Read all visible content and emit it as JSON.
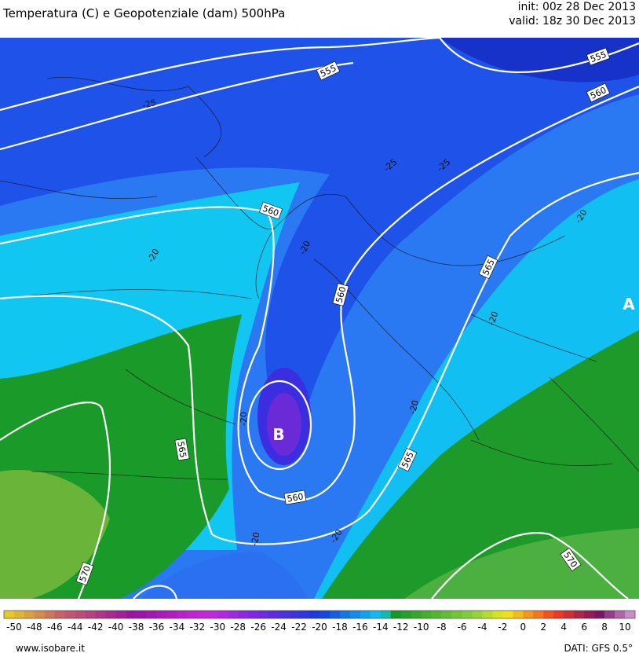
{
  "header": {
    "title": "Temperatura (C) e Geopotenziale (dam) 500hPa",
    "init": "init: 00z 28 Dec 2013",
    "valid": "valid: 18z 30 Dec 2013"
  },
  "map": {
    "labels": [
      "555",
      "555",
      "560",
      "-25",
      "-25",
      "-25",
      "560",
      "-20",
      "-20",
      "560",
      "565",
      "-20",
      "-20",
      "-20",
      "565",
      "-20",
      "565",
      "560",
      "-20",
      "-20",
      "570",
      "570"
    ],
    "high": "A",
    "low": "B"
  },
  "colorbar": {
    "labels": [
      -50,
      -48,
      -46,
      -44,
      -42,
      -40,
      -38,
      -36,
      -34,
      -32,
      -30,
      -28,
      -26,
      -24,
      -22,
      -20,
      -18,
      -16,
      -14,
      -12,
      -10,
      -8,
      -6,
      -4,
      -2,
      0,
      2,
      4,
      6,
      8,
      10
    ]
  },
  "footer": {
    "site": "www.isobare.it",
    "source": "DATI: GFS 0.5°"
  }
}
